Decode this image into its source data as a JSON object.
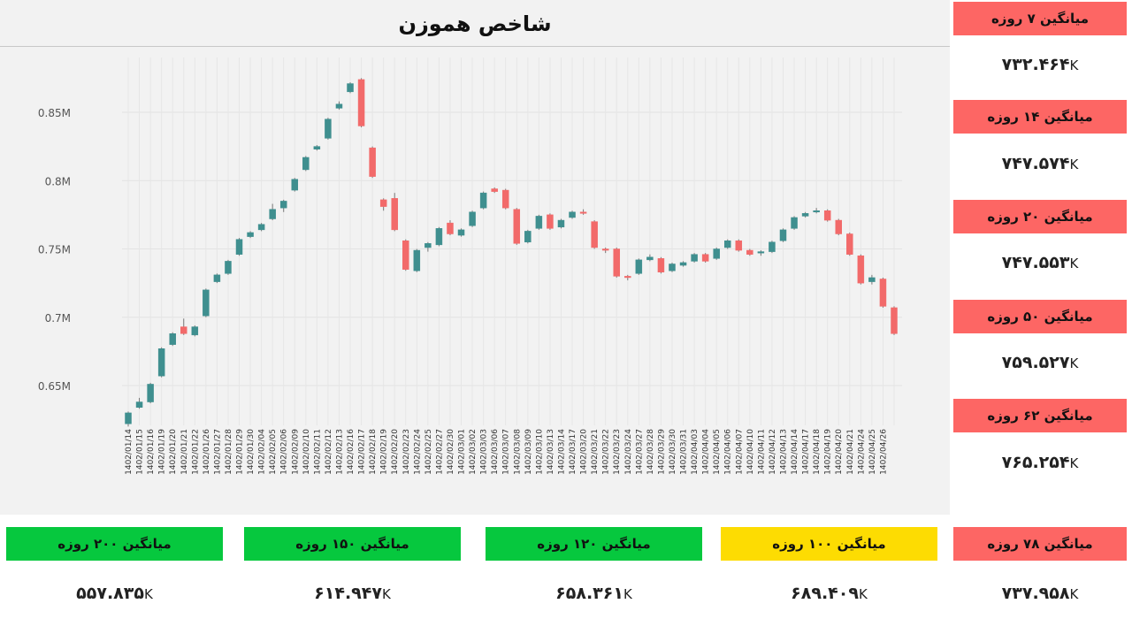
{
  "title": "شاخص هموزن",
  "colors": {
    "up": "#3f8f8f",
    "down": "#f26a6a",
    "badge_red": "#fd6664",
    "badge_green": "#06c83e",
    "badge_yellow": "#fddc02"
  },
  "side_cards": [
    {
      "label": "میانگین ۷ روزه",
      "value": "۷۳۲.۴۶۴",
      "unit": "K"
    },
    {
      "label": "میانگین ۱۴ روزه",
      "value": "۷۴۷.۵۷۴",
      "unit": "K"
    },
    {
      "label": "میانگین ۲۰ روزه",
      "value": "۷۴۷.۵۵۳",
      "unit": "K"
    },
    {
      "label": "میانگین ۵۰ روزه",
      "value": "۷۵۹.۵۲۷",
      "unit": "K"
    },
    {
      "label": "میانگین ۶۲ روزه",
      "value": "۷۶۵.۲۵۴",
      "unit": "K"
    }
  ],
  "bottom_cards": [
    {
      "label": "میانگین ۲۰۰ روزه",
      "value": "۵۵۷.۸۳۵",
      "unit": "K",
      "color": "green"
    },
    {
      "label": "میانگین ۱۵۰ روزه",
      "value": "۶۱۴.۹۴۷",
      "unit": "K",
      "color": "green"
    },
    {
      "label": "میانگین ۱۲۰ روزه",
      "value": "۶۵۸.۳۶۱",
      "unit": "K",
      "color": "green"
    },
    {
      "label": "میانگین ۱۰۰ روزه",
      "value": "۶۸۹.۴۰۹",
      "unit": "K",
      "color": "yellow"
    },
    {
      "label": "میانگین ۷۸ روزه",
      "value": "۷۳۷.۹۵۸",
      "unit": "K",
      "color": "red"
    }
  ],
  "chart_data": {
    "type": "candlestick",
    "title": "شاخص هموزن",
    "ylim": [
      0.6,
      0.9
    ],
    "y_unit": "M",
    "y_ticks": [
      0.65,
      0.7,
      0.75,
      0.8,
      0.85
    ],
    "y_tick_labels": [
      "0.65M",
      "0.7M",
      "0.75M",
      "0.8M",
      "0.85M"
    ],
    "grid": true,
    "candles": [
      {
        "date": "1402/01/14",
        "open": 0.622,
        "close": 0.63,
        "high": 0.631,
        "low": 0.62
      },
      {
        "date": "1402/01/15",
        "open": 0.634,
        "close": 0.638,
        "high": 0.641,
        "low": 0.633
      },
      {
        "date": "1402/01/16",
        "open": 0.638,
        "close": 0.651,
        "high": 0.652,
        "low": 0.637
      },
      {
        "date": "1402/01/19",
        "open": 0.657,
        "close": 0.677,
        "high": 0.678,
        "low": 0.656
      },
      {
        "date": "1402/01/20",
        "open": 0.68,
        "close": 0.688,
        "high": 0.689,
        "low": 0.679
      },
      {
        "date": "1402/01/21",
        "open": 0.693,
        "close": 0.688,
        "high": 0.699,
        "low": 0.687
      },
      {
        "date": "1402/01/22",
        "open": 0.687,
        "close": 0.693,
        "high": 0.694,
        "low": 0.686
      },
      {
        "date": "1402/01/26",
        "open": 0.701,
        "close": 0.72,
        "high": 0.721,
        "low": 0.7
      },
      {
        "date": "1402/01/27",
        "open": 0.726,
        "close": 0.731,
        "high": 0.732,
        "low": 0.725
      },
      {
        "date": "1402/01/28",
        "open": 0.732,
        "close": 0.741,
        "high": 0.742,
        "low": 0.731
      },
      {
        "date": "1402/01/29",
        "open": 0.746,
        "close": 0.757,
        "high": 0.758,
        "low": 0.745
      },
      {
        "date": "1402/01/30",
        "open": 0.759,
        "close": 0.762,
        "high": 0.763,
        "low": 0.758
      },
      {
        "date": "1402/02/04",
        "open": 0.764,
        "close": 0.768,
        "high": 0.769,
        "low": 0.763
      },
      {
        "date": "1402/02/05",
        "open": 0.772,
        "close": 0.779,
        "high": 0.783,
        "low": 0.771
      },
      {
        "date": "1402/02/06",
        "open": 0.78,
        "close": 0.785,
        "high": 0.786,
        "low": 0.777
      },
      {
        "date": "1402/02/09",
        "open": 0.793,
        "close": 0.801,
        "high": 0.802,
        "low": 0.792
      },
      {
        "date": "1402/02/10",
        "open": 0.808,
        "close": 0.817,
        "high": 0.818,
        "low": 0.807
      },
      {
        "date": "1402/02/11",
        "open": 0.823,
        "close": 0.825,
        "high": 0.826,
        "low": 0.822
      },
      {
        "date": "1402/02/12",
        "open": 0.831,
        "close": 0.845,
        "high": 0.846,
        "low": 0.83
      },
      {
        "date": "1402/02/13",
        "open": 0.853,
        "close": 0.856,
        "high": 0.858,
        "low": 0.852
      },
      {
        "date": "1402/02/16",
        "open": 0.865,
        "close": 0.871,
        "high": 0.872,
        "low": 0.864
      },
      {
        "date": "1402/02/17",
        "open": 0.874,
        "close": 0.84,
        "high": 0.875,
        "low": 0.839
      },
      {
        "date": "1402/02/18",
        "open": 0.824,
        "close": 0.803,
        "high": 0.825,
        "low": 0.802
      },
      {
        "date": "1402/02/19",
        "open": 0.786,
        "close": 0.781,
        "high": 0.787,
        "low": 0.778
      },
      {
        "date": "1402/02/20",
        "open": 0.787,
        "close": 0.764,
        "high": 0.791,
        "low": 0.763
      },
      {
        "date": "1402/02/23",
        "open": 0.756,
        "close": 0.735,
        "high": 0.757,
        "low": 0.734
      },
      {
        "date": "1402/02/24",
        "open": 0.734,
        "close": 0.749,
        "high": 0.75,
        "low": 0.733
      },
      {
        "date": "1402/02/25",
        "open": 0.751,
        "close": 0.754,
        "high": 0.755,
        "low": 0.748
      },
      {
        "date": "1402/02/27",
        "open": 0.753,
        "close": 0.765,
        "high": 0.766,
        "low": 0.752
      },
      {
        "date": "1402/02/30",
        "open": 0.769,
        "close": 0.761,
        "high": 0.771,
        "low": 0.76
      },
      {
        "date": "1402/03/01",
        "open": 0.76,
        "close": 0.764,
        "high": 0.765,
        "low": 0.759
      },
      {
        "date": "1402/03/02",
        "open": 0.767,
        "close": 0.777,
        "high": 0.778,
        "low": 0.766
      },
      {
        "date": "1402/03/03",
        "open": 0.78,
        "close": 0.791,
        "high": 0.792,
        "low": 0.779
      },
      {
        "date": "1402/03/06",
        "open": 0.794,
        "close": 0.792,
        "high": 0.795,
        "low": 0.791
      },
      {
        "date": "1402/03/07",
        "open": 0.793,
        "close": 0.78,
        "high": 0.794,
        "low": 0.779
      },
      {
        "date": "1402/03/08",
        "open": 0.779,
        "close": 0.754,
        "high": 0.78,
        "low": 0.753
      },
      {
        "date": "1402/03/09",
        "open": 0.755,
        "close": 0.763,
        "high": 0.764,
        "low": 0.754
      },
      {
        "date": "1402/03/10",
        "open": 0.765,
        "close": 0.774,
        "high": 0.775,
        "low": 0.764
      },
      {
        "date": "1402/03/13",
        "open": 0.775,
        "close": 0.765,
        "high": 0.776,
        "low": 0.764
      },
      {
        "date": "1402/03/14",
        "open": 0.766,
        "close": 0.771,
        "high": 0.772,
        "low": 0.765
      },
      {
        "date": "1402/03/17",
        "open": 0.773,
        "close": 0.777,
        "high": 0.778,
        "low": 0.772
      },
      {
        "date": "1402/03/20",
        "open": 0.777,
        "close": 0.776,
        "high": 0.779,
        "low": 0.775
      },
      {
        "date": "1402/03/21",
        "open": 0.77,
        "close": 0.751,
        "high": 0.771,
        "low": 0.75
      },
      {
        "date": "1402/03/22",
        "open": 0.75,
        "close": 0.749,
        "high": 0.751,
        "low": 0.747
      },
      {
        "date": "1402/03/23",
        "open": 0.75,
        "close": 0.73,
        "high": 0.751,
        "low": 0.729
      },
      {
        "date": "1402/03/24",
        "open": 0.73,
        "close": 0.729,
        "high": 0.731,
        "low": 0.727
      },
      {
        "date": "1402/03/27",
        "open": 0.732,
        "close": 0.742,
        "high": 0.743,
        "low": 0.731
      },
      {
        "date": "1402/03/28",
        "open": 0.742,
        "close": 0.744,
        "high": 0.746,
        "low": 0.741
      },
      {
        "date": "1402/03/29",
        "open": 0.743,
        "close": 0.733,
        "high": 0.744,
        "low": 0.732
      },
      {
        "date": "1402/03/30",
        "open": 0.734,
        "close": 0.739,
        "high": 0.74,
        "low": 0.733
      },
      {
        "date": "1402/03/31",
        "open": 0.738,
        "close": 0.74,
        "high": 0.741,
        "low": 0.737
      },
      {
        "date": "1402/04/03",
        "open": 0.741,
        "close": 0.746,
        "high": 0.747,
        "low": 0.74
      },
      {
        "date": "1402/04/04",
        "open": 0.746,
        "close": 0.741,
        "high": 0.747,
        "low": 0.74
      },
      {
        "date": "1402/04/05",
        "open": 0.743,
        "close": 0.75,
        "high": 0.751,
        "low": 0.742
      },
      {
        "date": "1402/04/06",
        "open": 0.751,
        "close": 0.756,
        "high": 0.757,
        "low": 0.75
      },
      {
        "date": "1402/04/07",
        "open": 0.756,
        "close": 0.749,
        "high": 0.757,
        "low": 0.748
      },
      {
        "date": "1402/04/10",
        "open": 0.749,
        "close": 0.746,
        "high": 0.75,
        "low": 0.745
      },
      {
        "date": "1402/04/11",
        "open": 0.747,
        "close": 0.748,
        "high": 0.749,
        "low": 0.745
      },
      {
        "date": "1402/04/12",
        "open": 0.748,
        "close": 0.755,
        "high": 0.756,
        "low": 0.747
      },
      {
        "date": "1402/04/13",
        "open": 0.756,
        "close": 0.764,
        "high": 0.765,
        "low": 0.755
      },
      {
        "date": "1402/04/14",
        "open": 0.765,
        "close": 0.773,
        "high": 0.774,
        "low": 0.764
      },
      {
        "date": "1402/04/17",
        "open": 0.774,
        "close": 0.776,
        "high": 0.777,
        "low": 0.773
      },
      {
        "date": "1402/04/18",
        "open": 0.777,
        "close": 0.778,
        "high": 0.78,
        "low": 0.776
      },
      {
        "date": "1402/04/19",
        "open": 0.778,
        "close": 0.771,
        "high": 0.779,
        "low": 0.77
      },
      {
        "date": "1402/04/20",
        "open": 0.771,
        "close": 0.761,
        "high": 0.772,
        "low": 0.76
      },
      {
        "date": "1402/04/21",
        "open": 0.761,
        "close": 0.746,
        "high": 0.762,
        "low": 0.745
      },
      {
        "date": "1402/04/24",
        "open": 0.745,
        "close": 0.725,
        "high": 0.746,
        "low": 0.724
      },
      {
        "date": "1402/04/25",
        "open": 0.726,
        "close": 0.729,
        "high": 0.731,
        "low": 0.724
      },
      {
        "date": "1402/04/26",
        "open": 0.728,
        "close": 0.708,
        "high": 0.729,
        "low": 0.707
      },
      {
        "date": "",
        "open": 0.707,
        "close": 0.688,
        "high": 0.708,
        "low": 0.687
      }
    ]
  }
}
